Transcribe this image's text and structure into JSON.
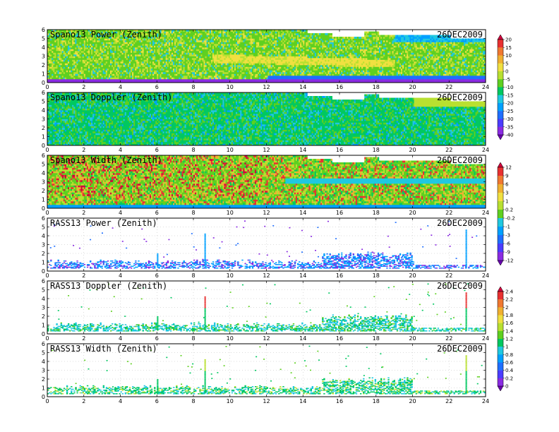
{
  "chart_data": {
    "type": "heatmap",
    "x_range": [
      0,
      24
    ],
    "x_ticks": [
      "0",
      "2",
      "4",
      "6",
      "8",
      "10",
      "12",
      "14",
      "16",
      "18",
      "20",
      "22",
      "24"
    ],
    "y_range": [
      0,
      6
    ],
    "y_ticks": [
      "0",
      "1",
      "2",
      "3",
      "4",
      "5",
      "6"
    ],
    "grid": true,
    "panels": [
      {
        "title": "Spano13 Power (Zenith)",
        "date": "26DEC2009",
        "style": "dense",
        "colorbar": 0
      },
      {
        "title": "Spano13 Doppler (Zenith)",
        "date": "26DEC2009",
        "style": "dense",
        "colorbar": 0
      },
      {
        "title": "Spano13 Width (Zenith)",
        "date": "26DEC2009",
        "style": "dense",
        "colorbar": 1
      },
      {
        "title": "RASS13 Power (Zenith)",
        "date": "26DEC2009",
        "style": "sparse",
        "colorbar": 1
      },
      {
        "title": "RASS13 Doppler (Zenith)",
        "date": "26DEC2009",
        "style": "sparse",
        "colorbar": 2
      },
      {
        "title": "RASS13 Width (Zenith)",
        "date": "26DEC2009",
        "style": "sparse",
        "colorbar": 2
      }
    ],
    "colorbars": [
      {
        "labels": [
          "20",
          "15",
          "10",
          "5",
          "0",
          "-5",
          "-10",
          "-15",
          "-20",
          "-25",
          "-30",
          "-35",
          "-40"
        ]
      },
      {
        "labels": [
          "12",
          "9",
          "6",
          "3",
          "1",
          "0.2",
          "-0.2",
          "-1",
          "-3",
          "-6",
          "-9",
          "-12"
        ]
      },
      {
        "labels": [
          "2.4",
          "2.2",
          "2",
          "1.8",
          "1.6",
          "1.4",
          "1.2",
          "1",
          "0.8",
          "0.6",
          "0.4",
          "0.2",
          "0"
        ]
      }
    ],
    "palette": [
      "#6a00b0",
      "#8a2be2",
      "#4b3cff",
      "#1f6fff",
      "#00a0ff",
      "#20c8e0",
      "#00c860",
      "#5fd020",
      "#b8e030",
      "#f0e040",
      "#f0b030",
      "#f07830",
      "#e83030",
      "#d0003c"
    ]
  }
}
